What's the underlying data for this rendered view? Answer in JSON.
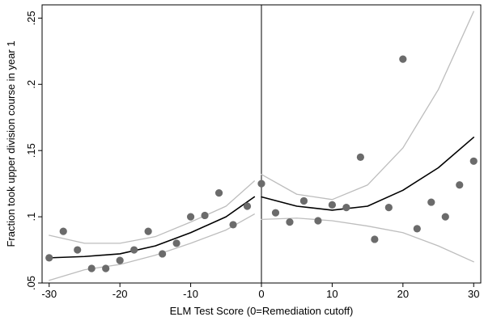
{
  "chart_data": {
    "type": "scatter",
    "title": "",
    "xlabel": "ELM Test Score (0=Remediation cutoff)",
    "ylabel": "Fraction took upper division course in year 1",
    "xlim": [
      -31,
      31
    ],
    "ylim": [
      0.05,
      0.26
    ],
    "xticks": [
      -30,
      -20,
      -10,
      0,
      10,
      20,
      30
    ],
    "xtick_labels": [
      "-30",
      "-20",
      "-10",
      "0",
      "10",
      "20",
      "30"
    ],
    "yticks": [
      0.05,
      0.1,
      0.15,
      0.2,
      0.25
    ],
    "ytick_labels": [
      ".05",
      ".1",
      ".15",
      ".2",
      ".25"
    ],
    "cutoff_line_x": 0,
    "grid": false,
    "legend": "none",
    "colors": {
      "points": "#6b6b6b",
      "fit": "#000000",
      "ci": "#bdbdbd",
      "axis": "#000000"
    },
    "series": [
      {
        "kind": "points",
        "x": [
          -30,
          -28,
          -26,
          -24,
          -22,
          -20,
          -18,
          -16,
          -14,
          -12,
          -10,
          -8,
          -6,
          -4,
          -2,
          0,
          2,
          4,
          6,
          8,
          10,
          12,
          14,
          16,
          18,
          20,
          22,
          24,
          26,
          28,
          30
        ],
        "y": [
          0.069,
          0.089,
          0.075,
          0.061,
          0.061,
          0.067,
          0.075,
          0.089,
          0.072,
          0.08,
          0.1,
          0.101,
          0.118,
          0.094,
          0.108,
          0.125,
          0.103,
          0.096,
          0.112,
          0.097,
          0.109,
          0.107,
          0.145,
          0.083,
          0.107,
          0.219,
          0.091,
          0.111,
          0.1,
          0.124,
          0.142
        ]
      },
      {
        "kind": "fit",
        "segment": "left",
        "x": [
          -30,
          -25,
          -20,
          -15,
          -10,
          -5,
          -1
        ],
        "y": [
          0.069,
          0.07,
          0.072,
          0.078,
          0.088,
          0.1,
          0.115
        ]
      },
      {
        "kind": "ci-upper",
        "segment": "left",
        "x": [
          -30,
          -25,
          -20,
          -15,
          -10,
          -5,
          -1
        ],
        "y": [
          0.086,
          0.08,
          0.08,
          0.085,
          0.096,
          0.108,
          0.127
        ]
      },
      {
        "kind": "ci-lower",
        "segment": "left",
        "x": [
          -30,
          -25,
          -20,
          -15,
          -10,
          -5,
          -1
        ],
        "y": [
          0.052,
          0.06,
          0.064,
          0.071,
          0.08,
          0.09,
          0.102
        ]
      },
      {
        "kind": "fit",
        "segment": "right",
        "x": [
          0,
          5,
          10,
          15,
          20,
          25,
          30
        ],
        "y": [
          0.115,
          0.108,
          0.105,
          0.108,
          0.12,
          0.137,
          0.16
        ]
      },
      {
        "kind": "ci-upper",
        "segment": "right",
        "x": [
          0,
          5,
          10,
          15,
          20,
          25,
          30
        ],
        "y": [
          0.132,
          0.117,
          0.113,
          0.124,
          0.152,
          0.196,
          0.255
        ]
      },
      {
        "kind": "ci-lower",
        "segment": "right",
        "x": [
          0,
          5,
          10,
          15,
          20,
          25,
          30
        ],
        "y": [
          0.098,
          0.099,
          0.097,
          0.093,
          0.088,
          0.078,
          0.066
        ]
      }
    ]
  }
}
